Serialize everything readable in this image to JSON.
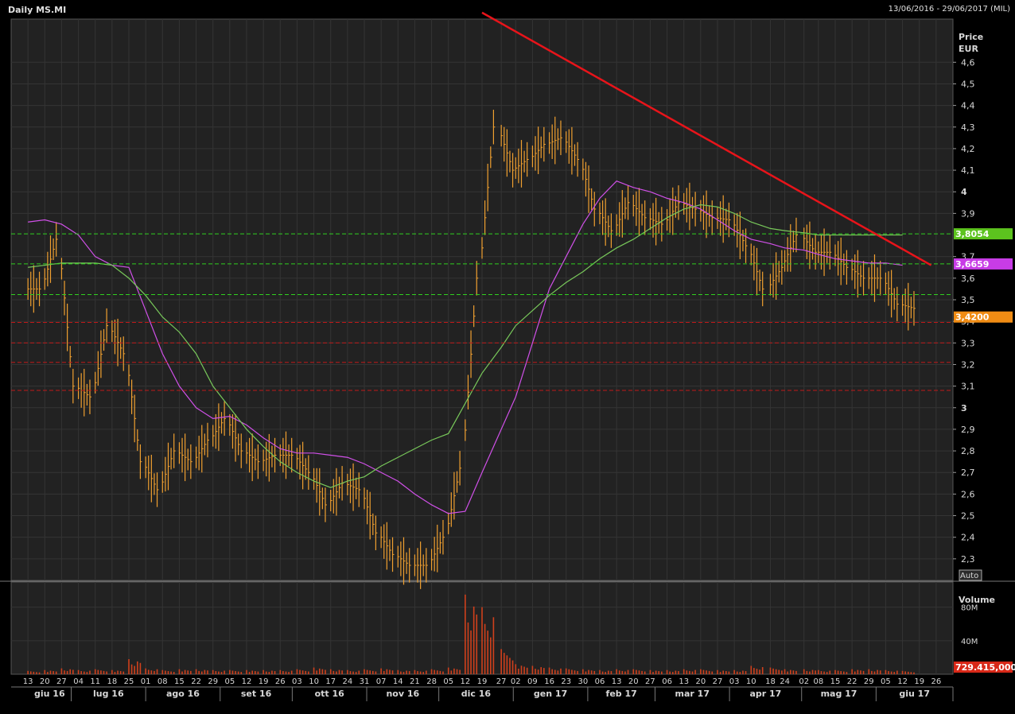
{
  "header": {
    "title": "Daily MS.MI",
    "range": "13/06/2016 - 29/06/2017 (MIL)"
  },
  "colors": {
    "background": "#000000",
    "plot_background": "#222222",
    "grid": "#343434",
    "candles": "#f0a030",
    "volume": "#d0401c",
    "trendline": "#e8141a",
    "ma_magenta": "#d050e8",
    "ma_green": "#78c85a",
    "support_dashed": "#30d020",
    "resistance_dashed": "#c01818",
    "label_green": "#5cc31e",
    "label_magenta": "#c83ce6",
    "label_orange": "#f08c14",
    "label_red": "#d82818"
  },
  "chart_data": {
    "type": "candlestick",
    "price_axis": {
      "title_line1": "Price",
      "title_line2": "EUR",
      "ticks": [
        "4,6",
        "4,5",
        "4,4",
        "4,3",
        "4,2",
        "4,1",
        "4",
        "3,9",
        "3,7",
        "3,6",
        "3,5",
        "3,4",
        "3,3",
        "3,2",
        "3,1",
        "3",
        "2,9",
        "2,8",
        "2,7",
        "2,6",
        "2,5",
        "2,4",
        "2,3"
      ],
      "range": [
        2.2,
        4.8
      ],
      "scale_button": "Auto"
    },
    "volume_axis": {
      "title": "Volume",
      "ticks": [
        "80M",
        "40M"
      ],
      "range": [
        0,
        110
      ]
    },
    "x_axis": {
      "day_labels": [
        "13",
        "20",
        "27",
        "04",
        "11",
        "18",
        "25",
        "01",
        "08",
        "15",
        "22",
        "29",
        "05",
        "12",
        "19",
        "26",
        "03",
        "10",
        "17",
        "24",
        "31",
        "07",
        "14",
        "21",
        "28",
        "05",
        "12",
        "19",
        "27",
        "02",
        "09",
        "16",
        "23",
        "30",
        "06",
        "13",
        "20",
        "27",
        "06",
        "13",
        "20",
        "27",
        "03",
        "10",
        "18",
        "24",
        "02",
        "08",
        "15",
        "22",
        "29",
        "05",
        "12",
        "19",
        "26"
      ],
      "month_labels": [
        "giu 16",
        "lug 16",
        "ago 16",
        "set 16",
        "ott 16",
        "nov 16",
        "dic 16",
        "gen 17",
        "feb 17",
        "mar 17",
        "apr 17",
        "mag 17",
        "giu 17"
      ]
    },
    "series": [
      {
        "kind": "ohlc",
        "x": [
          "2016-06-13",
          "2016-06-20",
          "2016-06-27",
          "2016-07-04",
          "2016-07-11",
          "2016-07-18",
          "2016-07-25",
          "2016-08-01",
          "2016-08-08",
          "2016-08-15",
          "2016-08-22",
          "2016-08-29",
          "2016-09-05",
          "2016-09-12",
          "2016-09-19",
          "2016-09-26",
          "2016-10-03",
          "2016-10-10",
          "2016-10-17",
          "2016-10-24",
          "2016-10-31",
          "2016-11-07",
          "2016-11-14",
          "2016-11-21",
          "2016-11-28",
          "2016-12-05",
          "2016-12-12",
          "2016-12-19",
          "2016-12-27",
          "2017-01-02",
          "2017-01-09",
          "2017-01-16",
          "2017-01-23",
          "2017-01-30",
          "2017-02-06",
          "2017-02-13",
          "2017-02-20",
          "2017-02-27",
          "2017-03-06",
          "2017-03-13",
          "2017-03-20",
          "2017-03-27",
          "2017-04-03",
          "2017-04-10",
          "2017-04-18",
          "2017-04-24",
          "2017-05-02",
          "2017-05-08",
          "2017-05-15",
          "2017-05-22",
          "2017-05-29",
          "2017-06-05",
          "2017-06-12"
        ],
        "close": [
          3.55,
          3.78,
          3.1,
          3.05,
          3.38,
          3.25,
          2.75,
          2.62,
          2.8,
          2.75,
          2.85,
          2.95,
          2.8,
          2.75,
          2.78,
          2.78,
          2.7,
          2.55,
          2.65,
          2.62,
          2.42,
          2.32,
          2.27,
          2.27,
          2.4,
          2.72,
          3.6,
          4.3,
          4.1,
          4.15,
          4.22,
          4.25,
          4.15,
          3.92,
          3.82,
          3.95,
          3.88,
          3.85,
          3.95,
          3.92,
          3.88,
          3.87,
          3.75,
          3.55,
          3.65,
          3.8,
          3.72,
          3.72,
          3.65,
          3.6,
          3.6,
          3.48,
          3.46
        ]
      },
      {
        "kind": "volume",
        "x": [
          "2016-06-13",
          "2016-06-20",
          "2016-06-27",
          "2016-07-04",
          "2016-07-11",
          "2016-07-18",
          "2016-07-25",
          "2016-08-01",
          "2016-08-08",
          "2016-08-15",
          "2016-08-22",
          "2016-08-29",
          "2016-09-05",
          "2016-09-12",
          "2016-09-19",
          "2016-09-26",
          "2016-10-03",
          "2016-10-10",
          "2016-10-17",
          "2016-10-24",
          "2016-10-31",
          "2016-11-07",
          "2016-11-14",
          "2016-11-21",
          "2016-11-28",
          "2016-12-05",
          "2016-12-12",
          "2016-12-19",
          "2016-12-27",
          "2017-01-02",
          "2017-01-09",
          "2017-01-16",
          "2017-01-23",
          "2017-01-30",
          "2017-02-06",
          "2017-02-13",
          "2017-02-20",
          "2017-02-27",
          "2017-03-06",
          "2017-03-13",
          "2017-03-20",
          "2017-03-27",
          "2017-04-03",
          "2017-04-10",
          "2017-04-18",
          "2017-04-24",
          "2017-05-02",
          "2017-05-08",
          "2017-05-15",
          "2017-05-22",
          "2017-05-29",
          "2017-06-05",
          "2017-06-12"
        ],
        "values": [
          4,
          5,
          7,
          5,
          6,
          5,
          18,
          7,
          5,
          6,
          6,
          5,
          5,
          5,
          5,
          5,
          6,
          8,
          6,
          5,
          6,
          7,
          5,
          5,
          6,
          8,
          95,
          80,
          30,
          12,
          10,
          8,
          7,
          6,
          5,
          6,
          6,
          5,
          5,
          6,
          6,
          5,
          5,
          10,
          8,
          6,
          6,
          5,
          5,
          6,
          6,
          5,
          4
        ]
      },
      {
        "kind": "moving_average",
        "color": "#d050e8",
        "values": [
          3.86,
          3.87,
          3.85,
          3.8,
          3.7,
          3.66,
          3.65,
          3.45,
          3.25,
          3.1,
          3.0,
          2.95,
          2.96,
          2.92,
          2.86,
          2.81,
          2.79,
          2.79,
          2.78,
          2.77,
          2.74,
          2.7,
          2.66,
          2.6,
          2.55,
          2.51,
          2.52,
          2.7,
          2.9,
          3.05,
          3.3,
          3.55,
          3.7,
          3.85,
          3.97,
          4.05,
          4.02,
          4.0,
          3.97,
          3.95,
          3.92,
          3.87,
          3.82,
          3.78,
          3.76,
          3.74,
          3.73,
          3.71,
          3.69,
          3.68,
          3.67,
          3.67,
          3.66
        ]
      },
      {
        "kind": "moving_average",
        "color": "#78c85a",
        "values": [
          3.65,
          3.66,
          3.67,
          3.67,
          3.67,
          3.66,
          3.6,
          3.52,
          3.42,
          3.35,
          3.25,
          3.1,
          3.0,
          2.9,
          2.82,
          2.75,
          2.7,
          2.66,
          2.63,
          2.66,
          2.68,
          2.73,
          2.77,
          2.81,
          2.85,
          2.88,
          3.02,
          3.16,
          3.28,
          3.38,
          3.45,
          3.52,
          3.58,
          3.63,
          3.69,
          3.74,
          3.78,
          3.83,
          3.88,
          3.92,
          3.94,
          3.93,
          3.9,
          3.86,
          3.83,
          3.82,
          3.81,
          3.8,
          3.8,
          3.8,
          3.8,
          3.8,
          3.8
        ]
      }
    ],
    "trendline": {
      "x": [
        "2016-12-19",
        "2017-06-12"
      ],
      "y": [
        4.83,
        3.66
      ]
    },
    "horizontal_levels": {
      "green": [
        3.805,
        3.666,
        3.524
      ],
      "red": [
        3.395,
        3.3,
        3.21,
        3.08
      ]
    },
    "price_labels": [
      {
        "text": "3,8054",
        "value": 3.8054,
        "color": "#5cc31e"
      },
      {
        "text": "3,6659",
        "value": 3.6659,
        "color": "#c83ce6"
      },
      {
        "text": "3,4200",
        "value": 3.42,
        "color": "#f08c14"
      }
    ],
    "volume_label": {
      "text": "729.415,0000",
      "color": "#d82818"
    }
  }
}
